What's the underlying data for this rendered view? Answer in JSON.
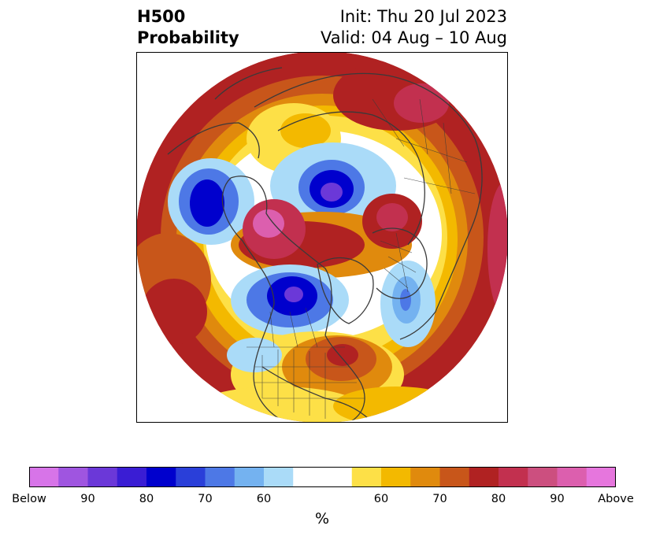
{
  "header": {
    "variable": "H500",
    "product": "Probability",
    "init": "Init: Thu 20 Jul 2023",
    "valid": "Valid: 04 Aug – 10 Aug"
  },
  "colorbar": {
    "unit": "%",
    "bins": [
      "#d774e8",
      "#9f55e0",
      "#6b38d8",
      "#3a1dd4",
      "#0000cd",
      "#2a3fd9",
      "#4d78e6",
      "#74b2f0",
      "#aadbf8",
      "#ffffff",
      "#ffffff",
      "#fde047",
      "#f3b900",
      "#e08a0d",
      "#c8561a",
      "#b02222",
      "#c2304f",
      "#cc4f7f",
      "#dc5fae",
      "#e676dd"
    ],
    "tick_labels": [
      "Below",
      "90",
      "80",
      "70",
      "60",
      "60",
      "70",
      "80",
      "90",
      "Above"
    ]
  },
  "map": {
    "projection": "north polar stereographic",
    "field": "500 hPa height anomaly probability",
    "colors": {
      "below_deep": "#0000cd",
      "below_core": "#6b38d8",
      "below_mid": "#4d78e6",
      "below_light": "#aadbf8",
      "neutral": "#ffffff",
      "above_light": "#fde047",
      "above_gold": "#f3b900",
      "above_orange": "#e08a0d",
      "above_rust": "#c8561a",
      "above_red": "#b02222",
      "above_rose": "#c2304f",
      "above_pink": "#dc5fae",
      "coastline": "#3a3a3a"
    }
  }
}
